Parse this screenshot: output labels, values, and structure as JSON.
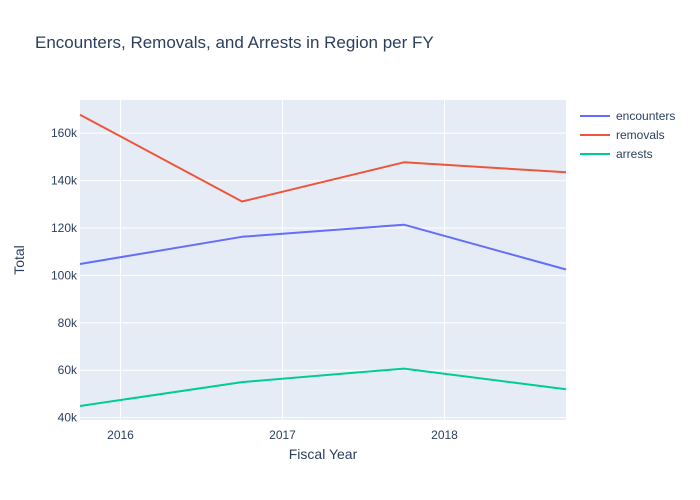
{
  "chart_data": {
    "type": "line",
    "title": "Encounters, Removals, and Arrests in Region per FY",
    "xlabel": "Fiscal Year",
    "ylabel": "Total",
    "x": [
      2015.75,
      2016.75,
      2017.75,
      2018.75
    ],
    "xlim": [
      2015.75,
      2018.75
    ],
    "ylim": [
      39000,
      174000
    ],
    "xticks": [
      2016,
      2017,
      2018
    ],
    "xtick_labels": [
      "2016",
      "2017",
      "2018"
    ],
    "yticks": [
      40000,
      60000,
      80000,
      100000,
      120000,
      140000,
      160000
    ],
    "ytick_labels": [
      "40k",
      "60k",
      "80k",
      "100k",
      "120k",
      "140k",
      "160k"
    ],
    "grid": true,
    "legend_position": "top-right",
    "series": [
      {
        "name": "encounters",
        "color": "#636efa",
        "values": [
          104800,
          116300,
          121400,
          102500
        ]
      },
      {
        "name": "removals",
        "color": "#ef553b",
        "values": [
          167800,
          131200,
          147700,
          143500
        ]
      },
      {
        "name": "arrests",
        "color": "#00cc96",
        "values": [
          44900,
          55000,
          60700,
          52000
        ]
      }
    ]
  }
}
